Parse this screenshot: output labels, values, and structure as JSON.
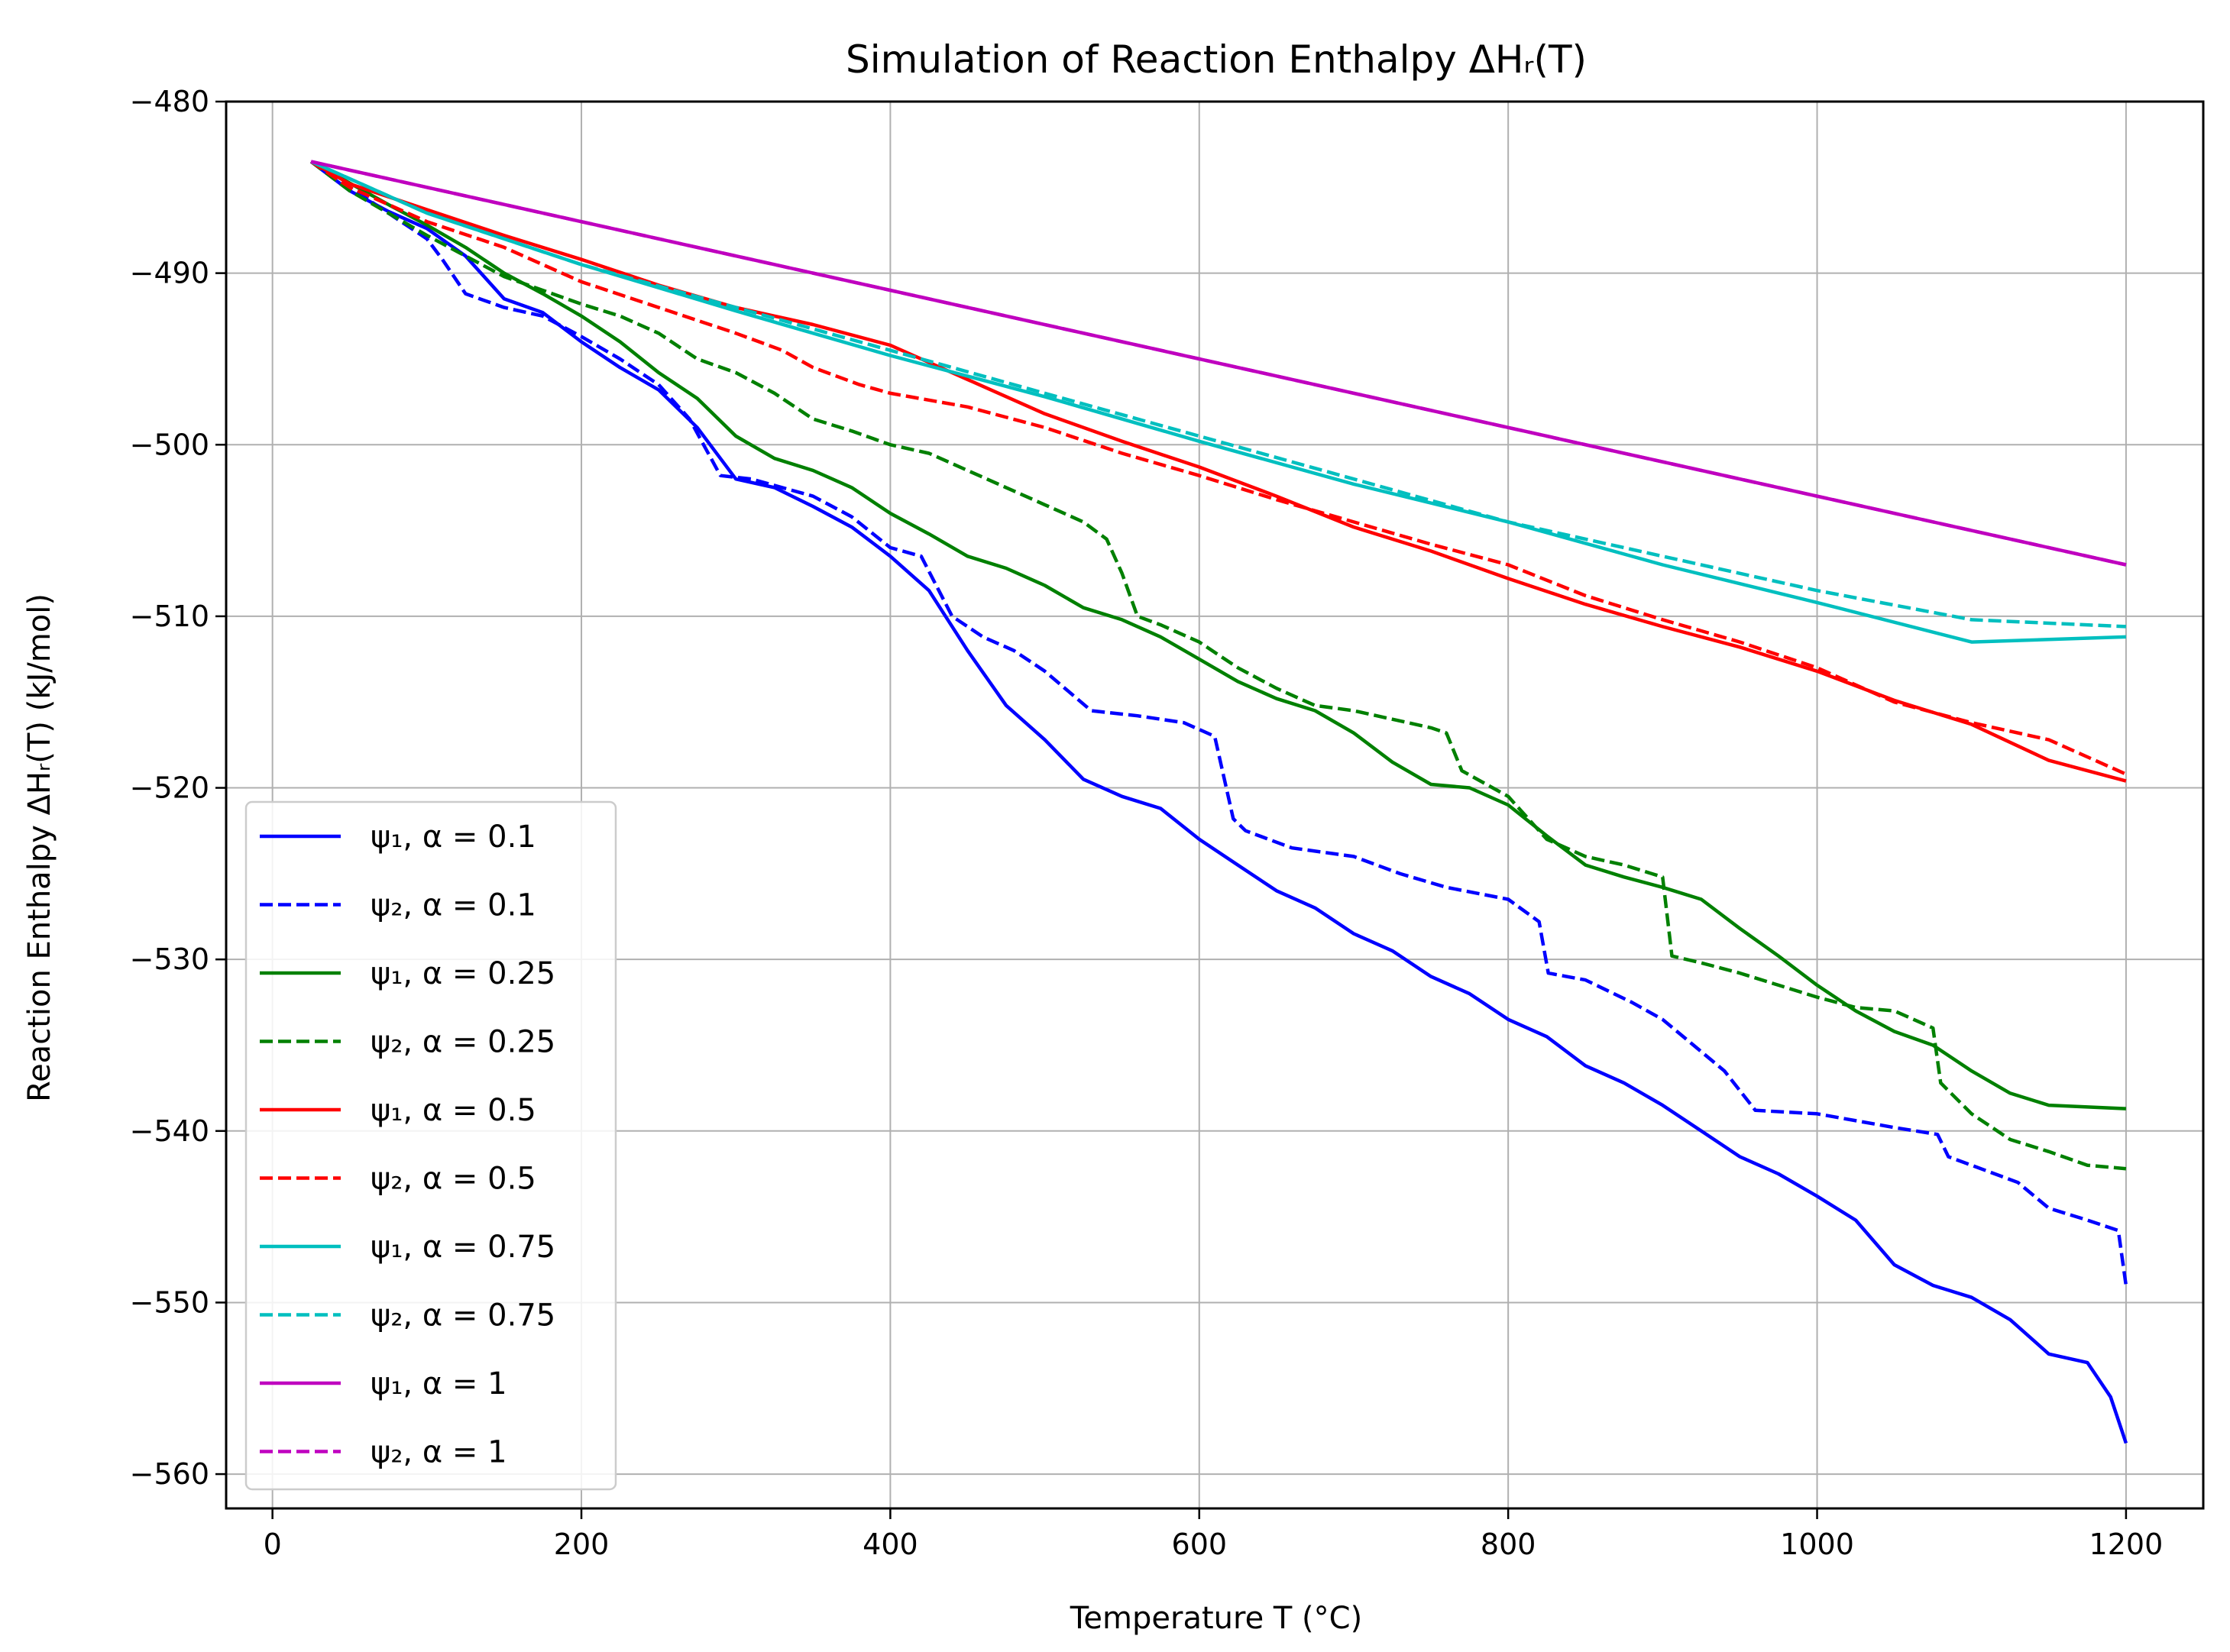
{
  "chart_data": {
    "type": "line",
    "title": "Simulation of Reaction Enthalpy ΔHᵣ(T)",
    "xlabel": "Temperature T (°C)",
    "ylabel": "Reaction Enthalpy ΔHᵣ(T) (kJ/mol)",
    "xlim": [
      -30,
      1250
    ],
    "ylim": [
      -562,
      -480
    ],
    "xticks": [
      0,
      200,
      400,
      600,
      800,
      1000,
      1200
    ],
    "xtick_labels": [
      "0",
      "200",
      "400",
      "600",
      "800",
      "1000",
      "1200"
    ],
    "yticks": [
      -480,
      -490,
      -500,
      -510,
      -520,
      -530,
      -540,
      -550,
      -560
    ],
    "ytick_labels": [
      "−480",
      "−490",
      "−500",
      "−510",
      "−520",
      "−530",
      "−540",
      "−550",
      "−560"
    ],
    "grid": true,
    "legend_position": "lower-left",
    "colors": {
      "blue": "#0000ff",
      "green": "#008000",
      "red": "#ff0000",
      "cyan": "#00bfbf",
      "magenta": "#bf00bf",
      "grid": "#b0b0b0",
      "legend_border": "#cccccc"
    },
    "series": [
      {
        "name": "ψ₁, α = 0.1",
        "color": "blue",
        "style": "solid",
        "x": [
          25,
          50,
          75,
          100,
          125,
          150,
          175,
          200,
          225,
          250,
          275,
          300,
          325,
          350,
          375,
          400,
          425,
          450,
          475,
          500,
          525,
          550,
          575,
          600,
          625,
          650,
          675,
          700,
          725,
          750,
          775,
          800,
          825,
          850,
          875,
          900,
          925,
          950,
          975,
          1000,
          1025,
          1050,
          1075,
          1100,
          1125,
          1150,
          1175,
          1190,
          1200
        ],
        "y": [
          -483.5,
          -485.2,
          -486.4,
          -487.4,
          -489,
          -491.5,
          -492.3,
          -494,
          -495.5,
          -496.8,
          -499,
          -502,
          -502.5,
          -503.6,
          -504.8,
          -506.5,
          -508.5,
          -512,
          -515.2,
          -517.2,
          -519.5,
          -520.5,
          -521.2,
          -523,
          -524.5,
          -526,
          -527,
          -528.5,
          -529.5,
          -531,
          -532,
          -533.5,
          -534.5,
          -536.2,
          -537.2,
          -538.5,
          -540,
          -541.5,
          -542.5,
          -543.8,
          -545.2,
          -547.8,
          -549,
          -549.7,
          -551,
          -553,
          -553.5,
          -555.5,
          -558.2
        ]
      },
      {
        "name": "ψ₂, α = 0.1",
        "color": "blue",
        "style": "dashed",
        "x": [
          25,
          50,
          75,
          100,
          110,
          125,
          150,
          175,
          200,
          225,
          250,
          270,
          290,
          310,
          330,
          350,
          375,
          400,
          420,
          440,
          460,
          480,
          500,
          530,
          560,
          590,
          610,
          622,
          630,
          660,
          700,
          730,
          760,
          800,
          820,
          826,
          850,
          880,
          900,
          920,
          940,
          960,
          1000,
          1050,
          1078,
          1085,
          1100,
          1130,
          1150,
          1175,
          1195,
          1200
        ],
        "y": [
          -483.5,
          -485,
          -486.5,
          -488,
          -489.2,
          -491.2,
          -492,
          -492.5,
          -493.7,
          -495,
          -496.5,
          -498.5,
          -501.8,
          -502,
          -502.5,
          -503,
          -504.2,
          -506,
          -506.5,
          -510,
          -511.2,
          -512,
          -513.2,
          -515.5,
          -515.8,
          -516.2,
          -517,
          -521.8,
          -522.5,
          -523.5,
          -524,
          -525,
          -525.8,
          -526.5,
          -527.8,
          -530.8,
          -531.2,
          -532.5,
          -533.5,
          -535,
          -536.5,
          -538.8,
          -539,
          -539.8,
          -540.2,
          -541.5,
          -542,
          -543,
          -544.5,
          -545.2,
          -545.8,
          -549
        ]
      },
      {
        "name": "ψ₁, α = 0.25",
        "color": "green",
        "style": "solid",
        "x": [
          25,
          75,
          100,
          125,
          150,
          175,
          200,
          225,
          250,
          275,
          300,
          325,
          350,
          375,
          400,
          425,
          450,
          475,
          500,
          525,
          550,
          575,
          600,
          625,
          650,
          675,
          700,
          725,
          750,
          775,
          800,
          825,
          850,
          875,
          900,
          925,
          950,
          975,
          1000,
          1025,
          1050,
          1075,
          1100,
          1125,
          1150,
          1200
        ],
        "y": [
          -483.5,
          -486,
          -487.2,
          -488.5,
          -490,
          -491.2,
          -492.5,
          -494,
          -495.8,
          -497.3,
          -499.5,
          -500.8,
          -501.5,
          -502.5,
          -504,
          -505.2,
          -506.5,
          -507.2,
          -508.2,
          -509.5,
          -510.2,
          -511.2,
          -512.5,
          -513.8,
          -514.8,
          -515.5,
          -516.8,
          -518.5,
          -519.8,
          -520,
          -521,
          -522.8,
          -524.5,
          -525.2,
          -525.8,
          -526.5,
          -528.2,
          -529.8,
          -531.5,
          -533,
          -534.2,
          -535,
          -536.5,
          -537.8,
          -538.5,
          -538.7
        ]
      },
      {
        "name": "ψ₂, α = 0.25",
        "color": "green",
        "style": "dashed",
        "x": [
          25,
          50,
          75,
          100,
          125,
          150,
          175,
          200,
          225,
          250,
          275,
          300,
          325,
          350,
          375,
          400,
          425,
          450,
          475,
          500,
          525,
          540,
          550,
          560,
          575,
          600,
          625,
          650,
          675,
          700,
          725,
          750,
          760,
          770,
          800,
          825,
          850,
          875,
          900,
          906,
          925,
          950,
          975,
          1000,
          1025,
          1050,
          1075,
          1080,
          1100,
          1125,
          1150,
          1175,
          1200
        ],
        "y": [
          -483.5,
          -485.2,
          -486.5,
          -487.8,
          -489,
          -490.2,
          -491,
          -491.8,
          -492.5,
          -493.5,
          -495,
          -495.8,
          -497,
          -498.5,
          -499.2,
          -500,
          -500.5,
          -501.5,
          -502.5,
          -503.5,
          -504.5,
          -505.5,
          -507.5,
          -510,
          -510.5,
          -511.5,
          -513,
          -514.2,
          -515.2,
          -515.5,
          -516,
          -516.5,
          -516.8,
          -519,
          -520.5,
          -523,
          -524,
          -524.5,
          -525.2,
          -529.8,
          -530.2,
          -530.8,
          -531.5,
          -532.2,
          -532.8,
          -533,
          -534,
          -537.2,
          -539,
          -540.5,
          -541.2,
          -542,
          -542.2
        ]
      },
      {
        "name": "ψ₁, α = 0.5",
        "color": "red",
        "style": "solid",
        "x": [
          25,
          50,
          100,
          150,
          200,
          250,
          300,
          350,
          400,
          450,
          500,
          550,
          600,
          650,
          700,
          750,
          800,
          850,
          900,
          950,
          1000,
          1050,
          1100,
          1150,
          1200
        ],
        "y": [
          -483.5,
          -484.8,
          -486.3,
          -487.8,
          -489.2,
          -490.7,
          -492,
          -493,
          -494.2,
          -496.2,
          -498.2,
          -499.8,
          -501.3,
          -503,
          -504.8,
          -506.2,
          -507.8,
          -509.3,
          -510.6,
          -511.8,
          -513.2,
          -514.9,
          -516.3,
          -518.4,
          -519.6
        ]
      },
      {
        "name": "ψ₂, α = 0.5",
        "color": "red",
        "style": "dashed",
        "x": [
          25,
          50,
          100,
          150,
          200,
          250,
          300,
          330,
          350,
          380,
          400,
          450,
          500,
          550,
          600,
          650,
          700,
          750,
          800,
          850,
          900,
          950,
          1000,
          1050,
          1100,
          1150,
          1200
        ],
        "y": [
          -483.5,
          -485,
          -487,
          -488.5,
          -490.5,
          -492,
          -493.5,
          -494.5,
          -495.5,
          -496.5,
          -497,
          -497.8,
          -499,
          -500.5,
          -501.8,
          -503.2,
          -504.5,
          -505.8,
          -507,
          -508.8,
          -510.2,
          -511.5,
          -513,
          -515,
          -516.2,
          -517.2,
          -519.2
        ]
      },
      {
        "name": "ψ₁, α = 0.75",
        "color": "cyan",
        "style": "solid",
        "x": [
          25,
          100,
          200,
          300,
          400,
          500,
          600,
          700,
          800,
          900,
          1000,
          1100,
          1200
        ],
        "y": [
          -483.5,
          -486.5,
          -489.5,
          -492.2,
          -494.8,
          -497.2,
          -499.8,
          -502.3,
          -504.5,
          -507,
          -509.2,
          -511.5,
          -511.2
        ]
      },
      {
        "name": "ψ₂, α = 0.75",
        "color": "cyan",
        "style": "dashed",
        "x": [
          25,
          100,
          200,
          300,
          400,
          500,
          600,
          700,
          800,
          900,
          1000,
          1100,
          1200
        ],
        "y": [
          -483.5,
          -486.5,
          -489.5,
          -492,
          -494.5,
          -497,
          -499.5,
          -502,
          -504.5,
          -506.5,
          -508.5,
          -510.2,
          -510.6
        ]
      },
      {
        "name": "ψ₁, α = 1",
        "color": "magenta",
        "style": "solid",
        "x": [
          25,
          1200
        ],
        "y": [
          -483.5,
          -507
        ]
      },
      {
        "name": "ψ₂, α = 1",
        "color": "magenta",
        "style": "dashed",
        "x": [
          25,
          1200
        ],
        "y": [
          -483.5,
          -507
        ]
      }
    ]
  }
}
